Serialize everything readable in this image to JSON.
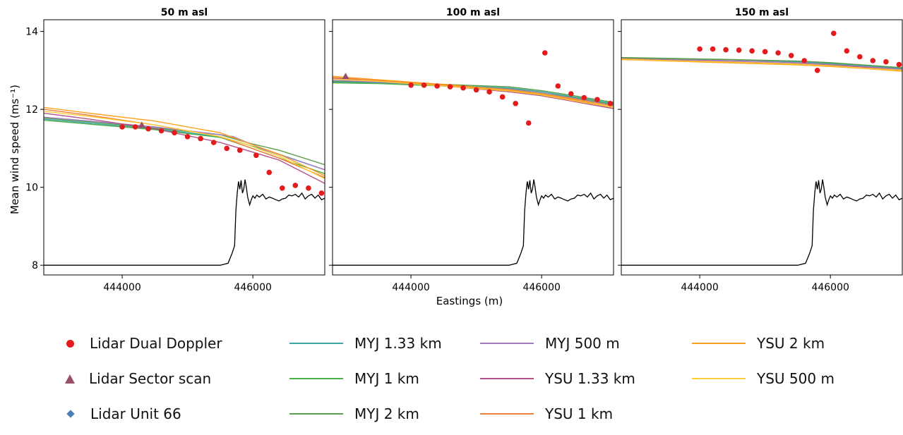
{
  "chart_data": {
    "type": "line",
    "ylabel": "Mean wind speed (ms⁻¹)",
    "xlabel": "Eastings (m)",
    "xlim": [
      442800,
      447100
    ],
    "ylim": [
      7.75,
      14.3
    ],
    "xticks": [
      444000,
      446000
    ],
    "xtick_labels": [
      "444000",
      "446000"
    ],
    "yticks": [
      8,
      10,
      12,
      14
    ],
    "ytick_labels": [
      "8",
      "10",
      "12",
      "14"
    ],
    "grid": false,
    "legend_position": "bottom",
    "series_styles": [
      {
        "name": "MYJ 1.33 km",
        "color": "#3aa6a6"
      },
      {
        "name": "MYJ 1 km",
        "color": "#4daf4a"
      },
      {
        "name": "MYJ 2 km",
        "color": "#5a9e4b"
      },
      {
        "name": "MYJ 500 m",
        "color": "#a37dbf"
      },
      {
        "name": "YSU 1.33 km",
        "color": "#b44f8b"
      },
      {
        "name": "YSU 1 km",
        "color": "#f07e3c"
      },
      {
        "name": "YSU 2 km",
        "color": "#ff9f1c"
      },
      {
        "name": "YSU 500 m",
        "color": "#ffcc33"
      }
    ],
    "panels": [
      {
        "title": "50 m asl",
        "models": [
          {
            "name": "MYJ 1.33 km",
            "x": [
              442800,
              443500,
              444500,
              445500,
              445900,
              446400,
              447100
            ],
            "y": [
              11.75,
              11.65,
              11.5,
              11.3,
              11.1,
              10.85,
              10.45
            ]
          },
          {
            "name": "MYJ 1 km",
            "x": [
              442800,
              443500,
              444500,
              445500,
              445900,
              446400,
              447100
            ],
            "y": [
              11.72,
              11.62,
              11.48,
              11.28,
              11.05,
              10.75,
              10.35
            ]
          },
          {
            "name": "MYJ 2 km",
            "x": [
              442800,
              443500,
              444500,
              445500,
              445900,
              446400,
              447100
            ],
            "y": [
              11.78,
              11.68,
              11.52,
              11.35,
              11.15,
              10.95,
              10.58
            ]
          },
          {
            "name": "MYJ 500 m",
            "x": [
              442800,
              443500,
              444500,
              445500,
              445700,
              446200,
              447100
            ],
            "y": [
              11.8,
              11.7,
              11.55,
              11.35,
              11.3,
              10.95,
              10.45
            ]
          },
          {
            "name": "YSU 1.33 km",
            "x": [
              442800,
              443500,
              444500,
              445500,
              445900,
              446400,
              447100
            ],
            "y": [
              11.9,
              11.75,
              11.5,
              11.15,
              10.95,
              10.7,
              10.1
            ]
          },
          {
            "name": "YSU 1 km",
            "x": [
              442800,
              443500,
              444500,
              445500,
              445900,
              446400,
              447100
            ],
            "y": [
              12.0,
              11.85,
              11.6,
              11.3,
              11.05,
              10.75,
              10.25
            ]
          },
          {
            "name": "YSU 2 km",
            "x": [
              442800,
              443500,
              444500,
              445500,
              445900,
              446400,
              447100
            ],
            "y": [
              12.05,
              11.9,
              11.7,
              11.4,
              11.15,
              10.85,
              10.3
            ]
          },
          {
            "name": "YSU 500 m",
            "x": [
              442800,
              443500,
              444500,
              445500,
              445900,
              446400,
              447100
            ],
            "y": [
              11.95,
              11.82,
              11.6,
              11.3,
              11.1,
              10.8,
              10.22
            ]
          }
        ],
        "dual_doppler": {
          "x": [
            444000,
            444200,
            444400,
            444600,
            444800,
            445000,
            445200,
            445400,
            445600,
            445800,
            446050,
            446250,
            446450,
            446650,
            446850,
            447050
          ],
          "y": [
            11.55,
            11.55,
            11.5,
            11.45,
            11.4,
            11.3,
            11.25,
            11.15,
            11.0,
            10.95,
            10.82,
            10.38,
            9.98,
            10.05,
            9.98,
            9.85
          ]
        },
        "sector_scan": {
          "x": [
            444300
          ],
          "y": [
            11.6
          ]
        },
        "unit66": {
          "x": [],
          "y": []
        }
      },
      {
        "title": "100 m asl",
        "models": [
          {
            "name": "MYJ 1.33 km",
            "x": [
              442800,
              443500,
              444500,
              445500,
              446000,
              446500,
              447100
            ],
            "y": [
              12.7,
              12.68,
              12.62,
              12.55,
              12.45,
              12.32,
              12.15
            ]
          },
          {
            "name": "MYJ 1 km",
            "x": [
              442800,
              443500,
              444500,
              445500,
              446000,
              446500,
              447100
            ],
            "y": [
              12.68,
              12.66,
              12.6,
              12.53,
              12.42,
              12.3,
              12.12
            ]
          },
          {
            "name": "MYJ 2 km",
            "x": [
              442800,
              443500,
              444500,
              445500,
              446000,
              446500,
              447100
            ],
            "y": [
              12.72,
              12.7,
              12.64,
              12.58,
              12.48,
              12.35,
              12.18
            ]
          },
          {
            "name": "MYJ 500 m",
            "x": [
              442800,
              443500,
              444500,
              445500,
              446000,
              446500,
              447100
            ],
            "y": [
              12.75,
              12.7,
              12.62,
              12.52,
              12.42,
              12.28,
              12.1
            ]
          },
          {
            "name": "YSU 1.33 km",
            "x": [
              442800,
              443500,
              444500,
              445500,
              446000,
              446500,
              447100
            ],
            "y": [
              12.8,
              12.72,
              12.6,
              12.45,
              12.35,
              12.2,
              12.02
            ]
          },
          {
            "name": "YSU 1 km",
            "x": [
              442800,
              443500,
              444500,
              445500,
              446000,
              446500,
              447100
            ],
            "y": [
              12.82,
              12.74,
              12.62,
              12.48,
              12.38,
              12.24,
              12.05
            ]
          },
          {
            "name": "YSU 2 km",
            "x": [
              442800,
              443500,
              444500,
              445500,
              446000,
              446500,
              447100
            ],
            "y": [
              12.85,
              12.76,
              12.64,
              12.5,
              12.4,
              12.26,
              12.08
            ]
          },
          {
            "name": "YSU 500 m",
            "x": [
              442800,
              443500,
              444500,
              445500,
              446000,
              446500,
              447100
            ],
            "y": [
              12.78,
              12.72,
              12.6,
              12.47,
              12.37,
              12.22,
              12.05
            ]
          }
        ],
        "dual_doppler": {
          "x": [
            444000,
            444200,
            444400,
            444600,
            444800,
            445000,
            445200,
            445400,
            445600,
            445800,
            446050,
            446250,
            446450,
            446650,
            446850,
            447050
          ],
          "y": [
            12.62,
            12.62,
            12.6,
            12.58,
            12.55,
            12.5,
            12.45,
            12.32,
            12.15,
            11.65,
            13.45,
            12.6,
            12.4,
            12.3,
            12.25,
            12.15
          ]
        },
        "sector_scan": {
          "x": [
            443000
          ],
          "y": [
            12.85
          ]
        },
        "unit66": {
          "x": [],
          "y": []
        }
      },
      {
        "title": "150 m asl",
        "models": [
          {
            "name": "MYJ 1.33 km",
            "x": [
              442800,
              443500,
              444500,
              445500,
              446000,
              446500,
              447100
            ],
            "y": [
              13.32,
              13.3,
              13.27,
              13.22,
              13.18,
              13.12,
              13.05
            ]
          },
          {
            "name": "MYJ 1 km",
            "x": [
              442800,
              443500,
              444500,
              445500,
              446000,
              446500,
              447100
            ],
            "y": [
              13.31,
              13.29,
              13.26,
              13.2,
              13.16,
              13.1,
              13.03
            ]
          },
          {
            "name": "MYJ 2 km",
            "x": [
              442800,
              443500,
              444500,
              445500,
              446000,
              446500,
              447100
            ],
            "y": [
              13.33,
              13.31,
              13.28,
              13.24,
              13.2,
              13.14,
              13.07
            ]
          },
          {
            "name": "MYJ 500 m",
            "x": [
              442800,
              443500,
              444500,
              445500,
              446000,
              446500,
              447100
            ],
            "y": [
              13.3,
              13.28,
              13.25,
              13.2,
              13.15,
              13.1,
              13.03
            ]
          },
          {
            "name": "YSU 1.33 km",
            "x": [
              442800,
              443500,
              444500,
              445500,
              446000,
              446500,
              447100
            ],
            "y": [
              13.3,
              13.26,
              13.22,
              13.17,
              13.13,
              13.08,
              13.0
            ]
          },
          {
            "name": "YSU 1 km",
            "x": [
              442800,
              443500,
              444500,
              445500,
              446000,
              446500,
              447100
            ],
            "y": [
              13.29,
              13.25,
              13.2,
              13.15,
              13.11,
              13.06,
              12.99
            ]
          },
          {
            "name": "YSU 2 km",
            "x": [
              442800,
              443500,
              444500,
              445500,
              446000,
              446500,
              447100
            ],
            "y": [
              13.28,
              13.24,
              13.19,
              13.14,
              13.1,
              13.05,
              12.98
            ]
          },
          {
            "name": "YSU 500 m",
            "x": [
              442800,
              443500,
              444500,
              445500,
              446000,
              446500,
              447100
            ],
            "y": [
              13.29,
              13.25,
              13.21,
              13.16,
              13.12,
              13.06,
              13.0
            ]
          }
        ],
        "dual_doppler": {
          "x": [
            444000,
            444200,
            444400,
            444600,
            444800,
            445000,
            445200,
            445400,
            445600,
            445800,
            446050,
            446250,
            446450,
            446650,
            446850,
            447050
          ],
          "y": [
            13.55,
            13.55,
            13.53,
            13.52,
            13.5,
            13.48,
            13.45,
            13.38,
            13.25,
            13.0,
            13.95,
            13.5,
            13.35,
            13.25,
            13.22,
            13.15
          ]
        },
        "sector_scan": {
          "x": [],
          "y": []
        },
        "unit66": {
          "x": [],
          "y": []
        }
      }
    ],
    "terrain": {
      "x": [
        442800,
        445500,
        445620,
        445680,
        445720,
        445740,
        445760,
        445780,
        445800,
        445820,
        445840,
        445860,
        445880,
        445900,
        445920,
        445950,
        445980,
        446000,
        446030,
        446060,
        446100,
        446150,
        446200,
        446250,
        446300,
        446350,
        446400,
        446450,
        446500,
        446550,
        446600,
        446650,
        446700,
        446750,
        446800,
        446850,
        446900,
        446950,
        447000,
        447050,
        447100
      ],
      "y": [
        8.0,
        8.0,
        8.05,
        8.3,
        8.5,
        9.4,
        9.85,
        10.15,
        9.95,
        10.18,
        9.85,
        9.95,
        10.2,
        10.0,
        9.75,
        9.55,
        9.7,
        9.78,
        9.72,
        9.8,
        9.75,
        9.82,
        9.7,
        9.75,
        9.72,
        9.68,
        9.65,
        9.7,
        9.72,
        9.8,
        9.78,
        9.82,
        9.75,
        9.85,
        9.7,
        9.78,
        9.82,
        9.72,
        9.8,
        9.68,
        9.72
      ]
    }
  },
  "legend": {
    "items": [
      {
        "label": "Lidar Dual Doppler",
        "kind": "dot",
        "color": "#e41a1c"
      },
      {
        "label": "Lidar Sector scan",
        "kind": "triangle",
        "color": "#984e6a"
      },
      {
        "label": "Lidar Unit 66",
        "kind": "diamond",
        "color": "#4a7fb8"
      },
      {
        "label": "MYJ 1.33 km",
        "kind": "line",
        "color": "#3aa6a6"
      },
      {
        "label": "MYJ 1 km",
        "kind": "line",
        "color": "#4daf4a"
      },
      {
        "label": "MYJ 2 km",
        "kind": "line",
        "color": "#5a9e4b"
      },
      {
        "label": "MYJ 500 m",
        "kind": "line",
        "color": "#a37dbf"
      },
      {
        "label": "YSU 1.33 km",
        "kind": "line",
        "color": "#b44f8b"
      },
      {
        "label": "YSU 1 km",
        "kind": "line",
        "color": "#f07e3c"
      },
      {
        "label": "YSU 2 km",
        "kind": "line",
        "color": "#ff9f1c"
      },
      {
        "label": "YSU 500 m",
        "kind": "line",
        "color": "#ffcc33"
      }
    ]
  }
}
